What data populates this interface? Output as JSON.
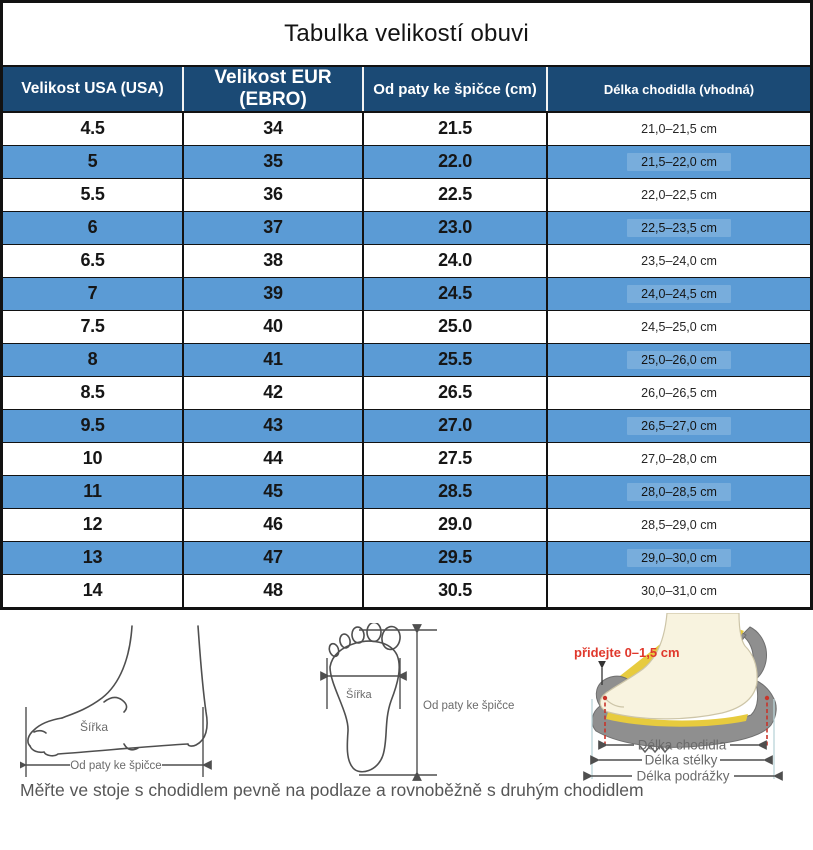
{
  "title": "Tabulka velikostí obuvi",
  "table": {
    "columns": [
      {
        "label": "Velikost USA (USA)"
      },
      {
        "label": "Velikost EUR (EBRO)"
      },
      {
        "label": "Od paty ke špičce (cm)"
      },
      {
        "label": "Délka chodidla (vhodná)"
      }
    ],
    "rows": [
      {
        "usa": "4.5",
        "eur": "34",
        "heel_toe": "21.5",
        "length": "21,0–21,5 cm"
      },
      {
        "usa": "5",
        "eur": "35",
        "heel_toe": "22.0",
        "length": "21,5–22,0 cm"
      },
      {
        "usa": "5.5",
        "eur": "36",
        "heel_toe": "22.5",
        "length": "22,0–22,5 cm"
      },
      {
        "usa": "6",
        "eur": "37",
        "heel_toe": "23.0",
        "length": "22,5–23,5 cm"
      },
      {
        "usa": "6.5",
        "eur": "38",
        "heel_toe": "24.0",
        "length": "23,5–24,0 cm"
      },
      {
        "usa": "7",
        "eur": "39",
        "heel_toe": "24.5",
        "length": "24,0–24,5 cm"
      },
      {
        "usa": "7.5",
        "eur": "40",
        "heel_toe": "25.0",
        "length": "24,5–25,0 cm"
      },
      {
        "usa": "8",
        "eur": "41",
        "heel_toe": "25.5",
        "length": "25,0–26,0 cm"
      },
      {
        "usa": "8.5",
        "eur": "42",
        "heel_toe": "26.5",
        "length": "26,0–26,5 cm"
      },
      {
        "usa": "9.5",
        "eur": "43",
        "heel_toe": "27.0",
        "length": "26,5–27,0 cm"
      },
      {
        "usa": "10",
        "eur": "44",
        "heel_toe": "27.5",
        "length": "27,0–28,0 cm"
      },
      {
        "usa": "11",
        "eur": "45",
        "heel_toe": "28.5",
        "length": "28,0–28,5 cm"
      },
      {
        "usa": "12",
        "eur": "46",
        "heel_toe": "29.0",
        "length": "28,5–29,0 cm"
      },
      {
        "usa": "13",
        "eur": "47",
        "heel_toe": "29.5",
        "length": "29,0–30,0 cm"
      },
      {
        "usa": "14",
        "eur": "48",
        "heel_toe": "30.5",
        "length": "30,0–31,0 cm"
      }
    ]
  },
  "diagrams": {
    "side_foot": {
      "width_label": "Šířka",
      "length_label": "Od paty ke špičce"
    },
    "top_foot": {
      "width_label": "Šířka",
      "length_label": "Od paty ke špičce"
    },
    "shoe": {
      "add_label": "přidejte 0–1,5 cm",
      "foot_length_label": "Délka chodidla",
      "insole_label": "Délka stélky",
      "outsole_label": "Délka podrážky"
    }
  },
  "caption": "Měřte ve stoje s chodidlem pevně na podlaze a rovnoběžně s druhým chodidlem",
  "colors": {
    "header_bg": "#1b4a75",
    "row_blue": "#5b9bd5",
    "border": "#121212",
    "accent_red": "#e0382c",
    "shoe_gray": "#8f8f8f",
    "insole_yellow": "#e7cb3e",
    "foot_cream": "#f8f3df"
  }
}
